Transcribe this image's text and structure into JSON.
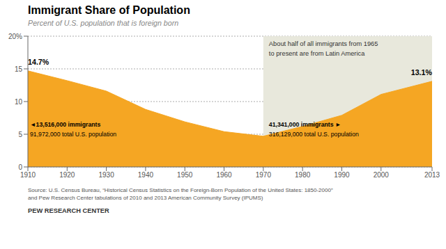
{
  "chart_data": {
    "type": "area",
    "title": "Immigrant Share of Population",
    "subtitle": "Percent of U.S. population that is foreign born",
    "source": "Source: U.S. Census Bureau, “Historical Census Statistics on the Foreign-Born Population of the United States: 1850-2000”\nand Pew Research Center tabulations of 2010 and 2013 American Community Survey (IPUMS)",
    "branding": "PEW RESEARCH CENTER",
    "x": [
      1910,
      1920,
      1930,
      1940,
      1950,
      1960,
      1970,
      1980,
      1990,
      2000,
      2013
    ],
    "values": [
      14.7,
      13.2,
      11.6,
      8.8,
      6.9,
      5.4,
      4.7,
      6.2,
      7.9,
      11.1,
      13.1
    ],
    "color": "#F5A623",
    "xlim": [
      1910,
      2013
    ],
    "xticks": [
      1910,
      1920,
      1930,
      1940,
      1950,
      1960,
      1970,
      1980,
      1990,
      2000,
      2013
    ],
    "ylim": [
      0,
      20
    ],
    "yticks": [
      0,
      5,
      10,
      15,
      {
        "value": 20,
        "label": "20%"
      }
    ],
    "grid": true,
    "highlight_x": [
      1970,
      2013
    ],
    "annotations": [
      "14.7%",
      "13.1%",
      "◄13,516,000 immigrants",
      "91,972,000 total U.S. population",
      "41,341,000 immigrants ►",
      "316,129,000 total U.S. population",
      "About half of all immigrants from 1965\nto present are from Latin America"
    ]
  }
}
